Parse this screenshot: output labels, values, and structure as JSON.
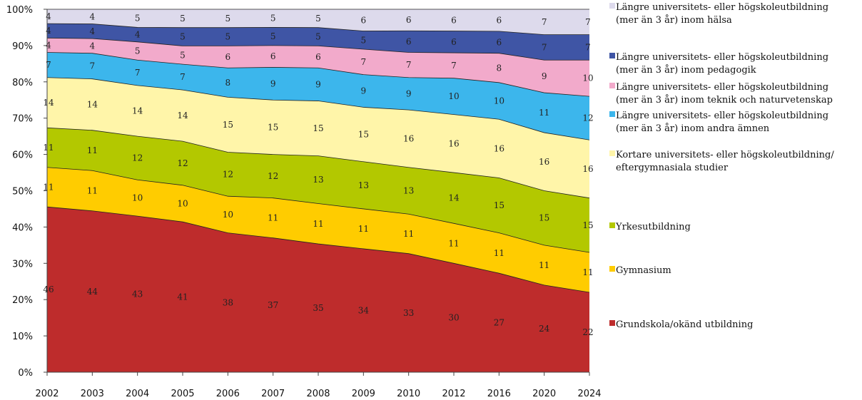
{
  "chart_data": {
    "type": "area",
    "stacked": true,
    "percent": true,
    "title": "",
    "xlabel": "",
    "ylabel": "",
    "x": [
      "2002",
      "2003",
      "2004",
      "2005",
      "2006",
      "2007",
      "2008",
      "2009",
      "2010",
      "2012",
      "2016",
      "2020",
      "2024"
    ],
    "ylim": [
      0,
      100
    ],
    "yticks": [
      "0%",
      "10%",
      "20%",
      "30%",
      "40%",
      "50%",
      "60%",
      "70%",
      "80%",
      "90%",
      "100%"
    ],
    "grid": false,
    "legend_position": "right",
    "series": [
      {
        "name": "Grundskola/okänd utbildning",
        "color": "#BE2C2C",
        "values": [
          46,
          44,
          43,
          41,
          38,
          37,
          35,
          34,
          33,
          30,
          27,
          24,
          22
        ]
      },
      {
        "name": "Gymnasium",
        "color": "#FFCC00",
        "values": [
          11,
          11,
          10,
          10,
          10,
          11,
          11,
          11,
          11,
          11,
          11,
          11,
          11
        ]
      },
      {
        "name": "Yrkesutbildning",
        "color": "#B3C800",
        "values": [
          11,
          11,
          12,
          12,
          12,
          12,
          13,
          13,
          13,
          14,
          15,
          15,
          15
        ]
      },
      {
        "name": "Kortare universitets- eller högskoleutbildning/ eftergymnasiala studier",
        "color": "#FFF5A9",
        "legend_lines": [
          "Kortare universitets- eller högskoleutbildning/",
          "eftergymnasiala studier"
        ],
        "values": [
          14,
          14,
          14,
          14,
          15,
          15,
          15,
          15,
          16,
          16,
          16,
          16,
          16
        ]
      },
      {
        "name": "Längre universitets- eller högskoleutbildning (mer än 3 år) inom andra ämnen",
        "color": "#3CB6EC",
        "legend_lines": [
          "Längre universitets- eller högskoleutbildning",
          "(mer än 3 år) inom andra ämnen"
        ],
        "values": [
          7,
          7,
          7,
          7,
          8,
          9,
          9,
          9,
          9,
          10,
          10,
          11,
          12
        ]
      },
      {
        "name": "Längre universitets- eller högskoleutbildning (mer än 3 år) inom teknik och naturvetenskap",
        "color": "#F2AACB",
        "legend_lines": [
          "Längre universitets- eller högskoleutbildning",
          "(mer än 3 år) inom teknik och naturvetenskap"
        ],
        "values": [
          4,
          4,
          5,
          5,
          6,
          6,
          6,
          7,
          7,
          7,
          8,
          9,
          10
        ]
      },
      {
        "name": "Längre universitets- eller högskoleutbildning (mer än 3 år) inom pedagogik",
        "color": "#3F55A5",
        "legend_lines": [
          "Längre universitets- eller högskoleutbildning",
          "(mer än 3 år) inom pedagogik"
        ],
        "values": [
          4,
          4,
          4,
          5,
          5,
          5,
          5,
          5,
          6,
          6,
          6,
          7,
          7
        ]
      },
      {
        "name": "Längre universitets- eller högskoleutbildning (mer än 3 år) inom hälsa",
        "color": "#DDDAEC",
        "legend_lines": [
          "Längre universitets- eller högskoleutbildning",
          "(mer än 3 år) inom hälsa"
        ],
        "values": [
          4,
          4,
          5,
          5,
          5,
          5,
          5,
          6,
          6,
          6,
          6,
          7,
          7
        ]
      }
    ]
  }
}
